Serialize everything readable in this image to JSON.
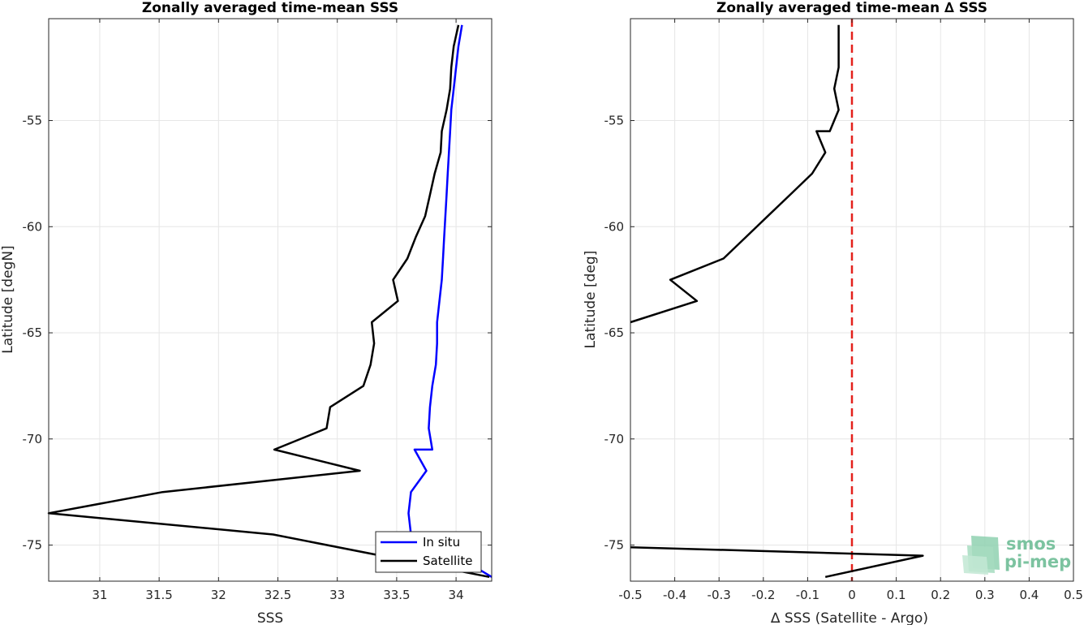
{
  "logo": {
    "line1": "smos",
    "line2": "pi-mep"
  },
  "chart_data": [
    {
      "type": "line",
      "title": "Zonally averaged time-mean SSS",
      "xlabel": "SSS",
      "ylabel": "Latitude [degN]",
      "xlim": [
        30.57,
        34.3
      ],
      "ylim": [
        -76.7,
        -50.2
      ],
      "xticks": [
        31,
        31.5,
        32,
        32.5,
        33,
        33.5,
        34
      ],
      "xtick_labels": [
        "31",
        "31.5",
        "32",
        "32.5",
        "33",
        "33.5",
        "34"
      ],
      "yticks": [
        -55,
        -60,
        -65,
        -70,
        -75
      ],
      "ytick_labels": [
        "-55",
        "-60",
        "-65",
        "-70",
        "-75"
      ],
      "grid": true,
      "legend_position": "bottom-right",
      "series": [
        {
          "name": "In situ",
          "color": "#0000ff",
          "points": [
            [
              34.05,
              -50.5
            ],
            [
              34.02,
              -51.5
            ],
            [
              34.0,
              -52.5
            ],
            [
              33.98,
              -53.5
            ],
            [
              33.96,
              -54.5
            ],
            [
              33.95,
              -55.5
            ],
            [
              33.94,
              -56.5
            ],
            [
              33.93,
              -57.5
            ],
            [
              33.92,
              -58.5
            ],
            [
              33.91,
              -59.5
            ],
            [
              33.9,
              -60.5
            ],
            [
              33.89,
              -61.5
            ],
            [
              33.88,
              -62.5
            ],
            [
              33.86,
              -63.5
            ],
            [
              33.84,
              -64.5
            ],
            [
              33.84,
              -65.5
            ],
            [
              33.83,
              -66.5
            ],
            [
              33.8,
              -67.5
            ],
            [
              33.78,
              -68.5
            ],
            [
              33.77,
              -69.5
            ],
            [
              33.8,
              -70.5
            ],
            [
              33.65,
              -70.5
            ],
            [
              33.75,
              -71.5
            ],
            [
              33.62,
              -72.5
            ],
            [
              33.6,
              -73.5
            ],
            [
              33.62,
              -74.5
            ],
            [
              34.0,
              -75.5
            ],
            [
              34.3,
              -76.5
            ]
          ]
        },
        {
          "name": "Satellite",
          "color": "#000000",
          "points": [
            [
              34.02,
              -50.5
            ],
            [
              33.98,
              -51.5
            ],
            [
              33.96,
              -52.5
            ],
            [
              33.95,
              -53.5
            ],
            [
              33.92,
              -54.5
            ],
            [
              33.88,
              -55.5
            ],
            [
              33.87,
              -56.5
            ],
            [
              33.82,
              -57.5
            ],
            [
              33.78,
              -58.5
            ],
            [
              33.74,
              -59.5
            ],
            [
              33.66,
              -60.5
            ],
            [
              33.59,
              -61.5
            ],
            [
              33.47,
              -62.5
            ],
            [
              33.51,
              -63.5
            ],
            [
              33.29,
              -64.5
            ],
            [
              33.31,
              -65.5
            ],
            [
              33.28,
              -66.5
            ],
            [
              33.22,
              -67.5
            ],
            [
              32.94,
              -68.5
            ],
            [
              32.91,
              -69.5
            ],
            [
              32.47,
              -70.5
            ],
            [
              33.19,
              -71.5
            ],
            [
              31.53,
              -72.5
            ],
            [
              30.57,
              -73.5
            ],
            [
              32.46,
              -74.5
            ],
            [
              34.28,
              -76.5
            ]
          ]
        }
      ]
    },
    {
      "type": "line",
      "title": "Zonally averaged time-mean ∆ SSS",
      "xlabel": "∆ SSS (Satellite - Argo)",
      "ylabel": "Latitude [deg]",
      "xlim": [
        -0.5,
        0.5
      ],
      "ylim": [
        -76.7,
        -50.2
      ],
      "xticks": [
        -0.5,
        -0.4,
        -0.3,
        -0.2,
        -0.1,
        0,
        0.1,
        0.2,
        0.3,
        0.4,
        0.5
      ],
      "xtick_labels": [
        "-0.5",
        "-0.4",
        "-0.3",
        "-0.2",
        "-0.1",
        "0",
        "0.1",
        "0.2",
        "0.3",
        "0.4",
        "0.5"
      ],
      "yticks": [
        -55,
        -60,
        -65,
        -70,
        -75
      ],
      "ytick_labels": [
        "-55",
        "-60",
        "-65",
        "-70",
        "-75"
      ],
      "grid": true,
      "reference_line": {
        "x": 0,
        "color": "#e3211c",
        "style": "dashed"
      },
      "series": [
        {
          "color": "#000000",
          "segments": [
            [
              [
                -0.03,
                -50.5
              ],
              [
                -0.03,
                -51.5
              ],
              [
                -0.03,
                -52.5
              ],
              [
                -0.04,
                -53.5
              ],
              [
                -0.03,
                -54.5
              ],
              [
                -0.05,
                -55.5
              ],
              [
                -0.08,
                -55.5
              ],
              [
                -0.06,
                -56.5
              ],
              [
                -0.09,
                -57.5
              ],
              [
                -0.14,
                -58.5
              ],
              [
                -0.19,
                -59.5
              ],
              [
                -0.24,
                -60.5
              ],
              [
                -0.29,
                -61.5
              ],
              [
                -0.41,
                -62.5
              ],
              [
                -0.35,
                -63.5
              ],
              [
                -0.5,
                -64.5
              ]
            ],
            [
              [
                -0.5,
                -75.1
              ],
              [
                0.16,
                -75.5
              ],
              [
                -0.06,
                -76.5
              ]
            ]
          ]
        }
      ]
    }
  ]
}
